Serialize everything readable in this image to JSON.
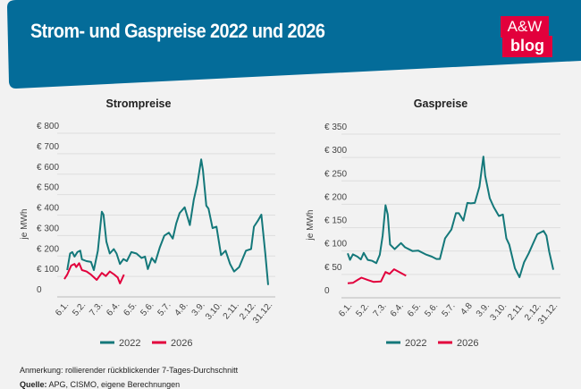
{
  "header": {
    "title": "Strom- und Gaspreise 2022 und 2026",
    "logo_line1": "A&W",
    "logo_line2": "blog",
    "color": "#046c99",
    "logo_color": "#e2003c"
  },
  "chart_data": [
    {
      "type": "line",
      "title": "Strompreise",
      "ylabel": "je MWh",
      "ylim": [
        0,
        800
      ],
      "yticks": [
        0,
        100,
        200,
        300,
        400,
        500,
        600,
        700,
        800
      ],
      "ytick_labels": [
        "0",
        "€ 100",
        "€ 200",
        "€ 300",
        "€ 400",
        "€ 500",
        "€ 600",
        "€ 700",
        "€ 800"
      ],
      "xticks": [
        "6.1.",
        "5.2.",
        "7.3.",
        "6.4.",
        "6.5.",
        "5.6.",
        "5.7.",
        "4.8.",
        "3.9.",
        "3.10.",
        "2.11.",
        "2.12.",
        "31.12."
      ],
      "grid": true,
      "legend": "bottom",
      "series": [
        {
          "name": "2022",
          "color": "#14787a",
          "points": [
            [
              "11.01.",
              131
            ],
            [
              "16.01.",
              212
            ],
            [
              "20.01.",
              219
            ],
            [
              "24.01.",
              197
            ],
            [
              "29.01.",
              219
            ],
            [
              "03.02.",
              226
            ],
            [
              "06.02.",
              183
            ],
            [
              "14.02.",
              175
            ],
            [
              "22.02.",
              171
            ],
            [
              "27.02.",
              131
            ],
            [
              "06.03.",
              226
            ],
            [
              "13.03.",
              416
            ],
            [
              "16.03.",
              402
            ],
            [
              "21.03.",
              270
            ],
            [
              "27.03.",
              212
            ],
            [
              "03.04.",
              234
            ],
            [
              "08.04.",
              212
            ],
            [
              "14.04.",
              161
            ],
            [
              "20.04.",
              185
            ],
            [
              "26.04.",
              175
            ],
            [
              "04.05.",
              219
            ],
            [
              "13.05.",
              212
            ],
            [
              "22.05.",
              190
            ],
            [
              "28.05.",
              197
            ],
            [
              "02.06.",
              136
            ],
            [
              "09.06.",
              190
            ],
            [
              "15.06.",
              168
            ],
            [
              "23.06.",
              241
            ],
            [
              "01.07.",
              299
            ],
            [
              "09.07.",
              314
            ],
            [
              "16.07.",
              285
            ],
            [
              "22.07.",
              358
            ],
            [
              "28.07.",
              409
            ],
            [
              "06.08.",
              438
            ],
            [
              "15.08.",
              351
            ],
            [
              "22.08.",
              475
            ],
            [
              "28.08.",
              548
            ],
            [
              "04.09.",
              672
            ],
            [
              "07.09.",
              621
            ],
            [
              "13.09.",
              446
            ],
            [
              "17.09.",
              431
            ],
            [
              "24.09.",
              336
            ],
            [
              "01.10.",
              343
            ],
            [
              "09.10.",
              204
            ],
            [
              "17.10.",
              226
            ],
            [
              "25.10.",
              161
            ],
            [
              "01.11.",
              124
            ],
            [
              "10.11.",
              146
            ],
            [
              "22.11.",
              226
            ],
            [
              "01.12.",
              234
            ],
            [
              "06.12.",
              343
            ],
            [
              "13.12.",
              373
            ],
            [
              "19.12.",
              402
            ],
            [
              "26.12.",
              212
            ],
            [
              "31.12.",
              58
            ]
          ]
        },
        {
          "name": "2026",
          "color": "#e2003c",
          "points": [
            [
              "06.01.",
              87
            ],
            [
              "11.01.",
              109
            ],
            [
              "18.01.",
              153
            ],
            [
              "24.01.",
              161
            ],
            [
              "27.01.",
              146
            ],
            [
              "01.02.",
              165
            ],
            [
              "06.02.",
              131
            ],
            [
              "14.02.",
              124
            ],
            [
              "22.02.",
              109
            ],
            [
              "04.03.",
              83
            ],
            [
              "13.03.",
              117
            ],
            [
              "20.03.",
              102
            ],
            [
              "27.03.",
              124
            ],
            [
              "04.04.",
              109
            ],
            [
              "10.04.",
              95
            ],
            [
              "14.04.",
              66
            ],
            [
              "21.04.",
              109
            ]
          ]
        }
      ]
    },
    {
      "type": "line",
      "title": "Gaspreise",
      "ylabel": "je MWh",
      "ylim": [
        0,
        350
      ],
      "yticks": [
        0,
        50,
        100,
        150,
        200,
        250,
        300,
        350
      ],
      "ytick_labels": [
        "0",
        "€ 50",
        "€ 100",
        "€ 150",
        "€ 200",
        "€ 250",
        "€ 300",
        "€ 350"
      ],
      "xticks": [
        "6.1.",
        "5.2.",
        "7.3.",
        "6.4.",
        "6.5.",
        "5.6.",
        "5.7.",
        "4.8",
        "3.9.",
        "3.10.",
        "2.11.",
        "2.12.",
        "31.12."
      ],
      "grid": true,
      "legend": "bottom",
      "series": [
        {
          "name": "2022",
          "color": "#14787a",
          "points": [
            [
              "06.01.",
              95
            ],
            [
              "10.01.",
              81
            ],
            [
              "15.01.",
              93
            ],
            [
              "23.01.",
              88
            ],
            [
              "29.01.",
              82
            ],
            [
              "03.02.",
              96
            ],
            [
              "10.02.",
              81
            ],
            [
              "18.02.",
              79
            ],
            [
              "25.02.",
              74
            ],
            [
              "03.03.",
              92
            ],
            [
              "08.03.",
              133
            ],
            [
              "13.03.",
              198
            ],
            [
              "17.03.",
              178
            ],
            [
              "21.03.",
              114
            ],
            [
              "29.03.",
              104
            ],
            [
              "09.04.",
              117
            ],
            [
              "16.04.",
              108
            ],
            [
              "29.04.",
              100
            ],
            [
              "09.05.",
              101
            ],
            [
              "22.05.",
              93
            ],
            [
              "02.06.",
              88
            ],
            [
              "10.06.",
              83
            ],
            [
              "16.06.",
              83
            ],
            [
              "25.06.",
              127
            ],
            [
              "06.07.",
              146
            ],
            [
              "14.07.",
              181
            ],
            [
              "19.07.",
              181
            ],
            [
              "27.07.",
              165
            ],
            [
              "03.08.",
              203
            ],
            [
              "09.08.",
              202
            ],
            [
              "16.08.",
              203
            ],
            [
              "24.08.",
              238
            ],
            [
              "31.08.",
              302
            ],
            [
              "03.09.",
              261
            ],
            [
              "11.09.",
              213
            ],
            [
              "18.09.",
              194
            ],
            [
              "27.09.",
              175
            ],
            [
              "04.10.",
              178
            ],
            [
              "10.10.",
              127
            ],
            [
              "15.10.",
              114
            ],
            [
              "25.10.",
              63
            ],
            [
              "02.11.",
              44
            ],
            [
              "10.11.",
              76
            ],
            [
              "18.11.",
              95
            ],
            [
              "25.11.",
              114
            ],
            [
              "03.12.",
              136
            ],
            [
              "14.12.",
              143
            ],
            [
              "19.12.",
              133
            ],
            [
              "24.12.",
              98
            ],
            [
              "31.12.",
              60
            ]
          ]
        },
        {
          "name": "2026",
          "color": "#e2003c",
          "points": [
            [
              "06.01.",
              31
            ],
            [
              "15.01.",
              32
            ],
            [
              "23.01.",
              38
            ],
            [
              "30.01.",
              43
            ],
            [
              "10.02.",
              38
            ],
            [
              "20.02.",
              34
            ],
            [
              "05.03.",
              35
            ],
            [
              "13.03.",
              55
            ],
            [
              "20.03.",
              51
            ],
            [
              "28.03.",
              61
            ],
            [
              "06.04.",
              55
            ],
            [
              "18.04.",
              47
            ]
          ]
        }
      ]
    }
  ],
  "footer": {
    "note": "Anmerkung: rollierender rückblickender 7-Tages-Durchschnitt",
    "source_label": "Quelle:",
    "source": "APG, CISMO, eigene Berechnungen"
  }
}
